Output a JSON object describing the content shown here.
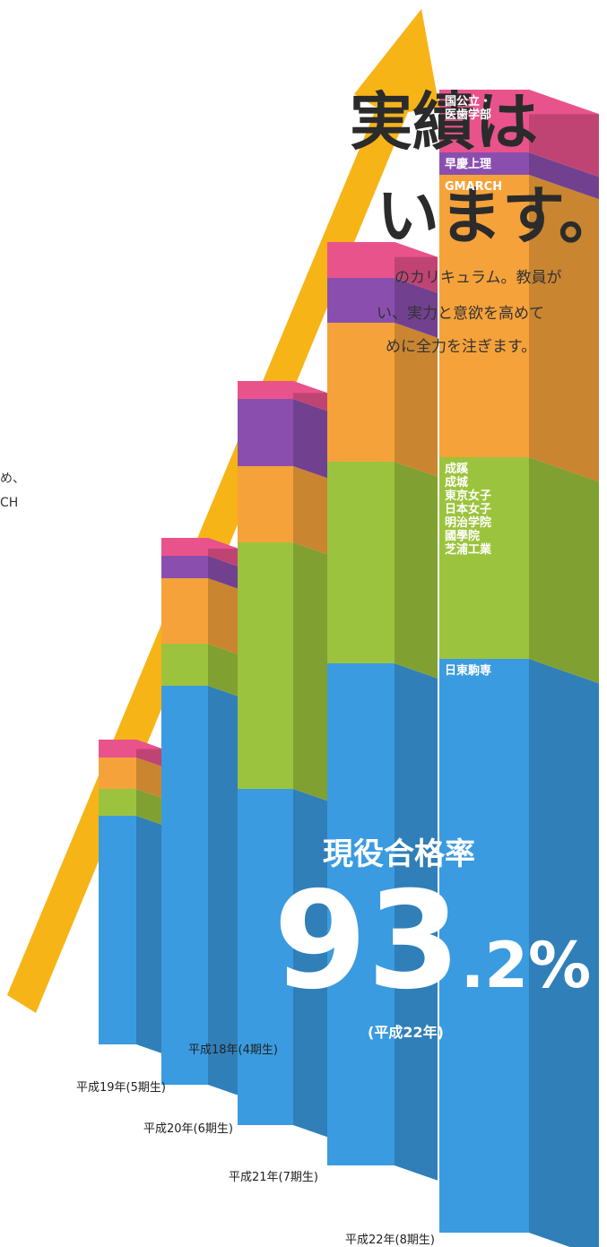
{
  "chart_data": {
    "type": "stacked-bar-3d",
    "title_fragments": [
      "実績は",
      "います。"
    ],
    "text_fragments": [
      "のカリキュラム。教員が",
      "い、実力と意欲を高めて",
      "めに全力を注ぎます。",
      "め、",
      "CH"
    ],
    "categories": [
      "平成18年(4期生)",
      "平成19年(5期生)",
      "平成20年(6期生)",
      "平成21年(7期生)",
      "平成22年(8期生)"
    ],
    "series": [
      {
        "name": "日東駒専",
        "color": "#3a9be0",
        "values": [
          255,
          445,
          375,
          560,
          640
        ]
      },
      {
        "name": "成蹊\n成城\n東京女子\n日本女子\n明治学院\n國學院\n芝浦工業",
        "color": "#9cc33d",
        "values": [
          30,
          47,
          275,
          225,
          225
        ]
      },
      {
        "name": "GMARCH",
        "color": "#f6a23a",
        "values": [
          35,
          73,
          85,
          155,
          315
        ]
      },
      {
        "name": "早慶上理",
        "color": "#8a4fae",
        "values": [
          0,
          25,
          75,
          50,
          25
        ]
      },
      {
        "name": "国公立・\n医歯学部",
        "color": "#e9538c",
        "values": [
          20,
          20,
          20,
          40,
          70
        ]
      }
    ],
    "highlight": {
      "label": "現役合格率",
      "value": 93.2,
      "value_label": "93.2%",
      "note": "(平成22年)"
    }
  }
}
